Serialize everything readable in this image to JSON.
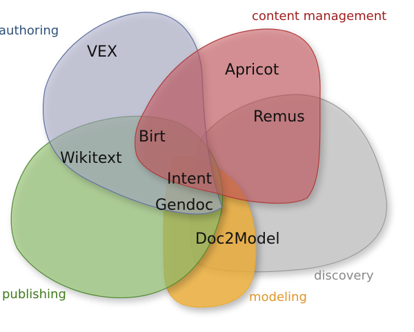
{
  "sets": [
    {
      "key": "authoring",
      "label": "authoring",
      "fill": "#a7acc7",
      "stroke": "#6070a0",
      "text_color": "#2e5078"
    },
    {
      "key": "content_management",
      "label": "content management",
      "fill": "#c4545a",
      "stroke": "#b03a3a",
      "text_color": "#a01c1c"
    },
    {
      "key": "discovery",
      "label": "discovery",
      "fill": "#bfbfbf",
      "stroke": "#9a9a9a",
      "text_color": "#888888"
    },
    {
      "key": "publishing",
      "label": "publishing",
      "fill": "#8fbf6c",
      "stroke": "#4f8a32",
      "text_color": "#3f7a1a"
    },
    {
      "key": "modeling",
      "label": "modeling",
      "fill": "#f0b03a",
      "stroke": "#e8a830",
      "text_color": "#e0962a"
    }
  ],
  "items": [
    {
      "key": "vex",
      "label": "VEX"
    },
    {
      "key": "apricot",
      "label": "Apricot"
    },
    {
      "key": "remus",
      "label": "Remus"
    },
    {
      "key": "birt",
      "label": "Birt"
    },
    {
      "key": "wikitext",
      "label": "Wikitext"
    },
    {
      "key": "intent",
      "label": "Intent"
    },
    {
      "key": "gendoc",
      "label": "Gendoc"
    },
    {
      "key": "doc2model",
      "label": "Doc2Model"
    }
  ]
}
